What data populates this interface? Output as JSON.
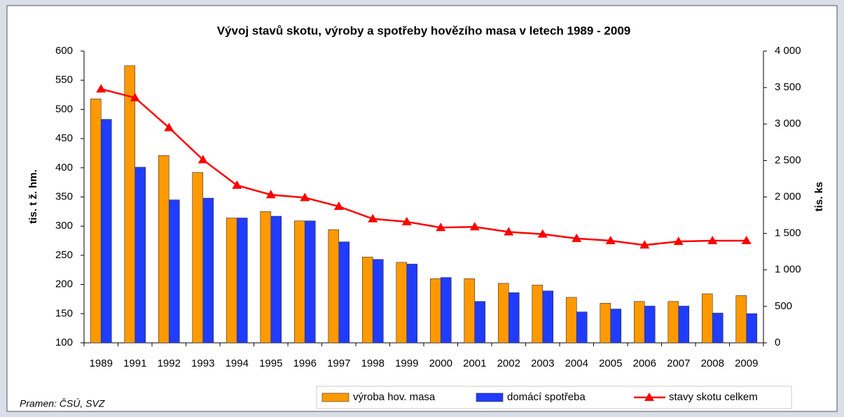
{
  "chart_data": {
    "type": "bar",
    "title": "Vývoj stavů skotu, výroby a spotřeby hovězího masa v letech 1989 - 2009",
    "y_label": "tis. t ž. hm.",
    "y2_label": "tis. ks",
    "source": "Pramen: ČSÚ, SVZ",
    "categories": [
      "1989",
      "1991",
      "1992",
      "1993",
      "1994",
      "1995",
      "1996",
      "1997",
      "1998",
      "1999",
      "2000",
      "2001",
      "2002",
      "2003",
      "2004",
      "2005",
      "2006",
      "2007",
      "2008",
      "2009"
    ],
    "series": [
      {
        "name": "výroba hov. masa",
        "color": "#ff9900",
        "values": [
          518,
          575,
          421,
          392,
          314,
          325,
          309,
          294,
          247,
          238,
          210,
          210,
          202,
          199,
          178,
          168,
          171,
          171,
          184,
          181
        ]
      },
      {
        "name": "domácí spotřeba",
        "color": "#1f3cff",
        "values": [
          483,
          401,
          345,
          348,
          314,
          317,
          309,
          273,
          243,
          235,
          212,
          171,
          186,
          189,
          153,
          158,
          163,
          163,
          151,
          150
        ]
      },
      {
        "name": "stavy skotu celkem",
        "color": "#ff0000",
        "type": "line",
        "axis": "y2",
        "values": [
          3480,
          3360,
          2950,
          2510,
          2160,
          2030,
          1990,
          1870,
          1700,
          1660,
          1580,
          1590,
          1520,
          1490,
          1430,
          1400,
          1340,
          1390,
          1400,
          1400
        ]
      }
    ],
    "ylim": [
      100,
      600
    ],
    "yticks": [
      100,
      150,
      200,
      250,
      300,
      350,
      400,
      450,
      500,
      550,
      600
    ],
    "y2lim": [
      0,
      4000
    ],
    "y2ticks": [
      0,
      500,
      {
        "value": 1000,
        "label": "1 000"
      },
      {
        "value": 1500,
        "label": "1 500"
      },
      {
        "value": 2000,
        "label": "2 000"
      },
      {
        "value": 2500,
        "label": "2 500"
      },
      {
        "value": 3000,
        "label": "3 000"
      },
      {
        "value": 3500,
        "label": "3 500"
      },
      {
        "value": 4000,
        "label": "4 000"
      }
    ],
    "legend": "bottom-right"
  }
}
